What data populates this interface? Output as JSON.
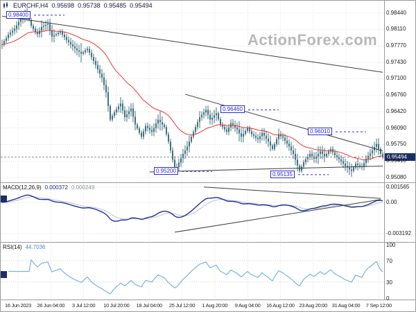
{
  "header": {
    "symbol": "EURCHF,H4",
    "open": "0.95698",
    "high": "0.95738",
    "low": "0.95485",
    "close": "0.95494"
  },
  "watermark": "ActionForex.com",
  "indicators": {
    "macd_label": "MACD(12,26,9)",
    "macd_value": "0.000372",
    "macd_signal_value": "0.000249",
    "rsi_label": "RSI(14)",
    "rsi_value": "44.7036"
  },
  "colors": {
    "candle": "#41707e",
    "ma": "#e43434",
    "macd": "#1d2f93",
    "macd_signal": "#b9bed8",
    "rsi": "#79b1e3",
    "label_blue": "#2a2ad0",
    "marker_bg": "#1c2e66",
    "watermark": "#b8b8b8",
    "grid": "#dcdcdc",
    "trendline": "#3c3c3c"
  },
  "chart_data": {
    "type": "candlestick",
    "symbol": "EURCHF",
    "timeframe": "H4",
    "title": "EURCHF,H4 0.95698 0.95738 0.95485 0.95494",
    "x_labels": [
      "16 Jun 2023",
      "26 Jun 04:00",
      "3 Jul 12:00",
      "10 Jul 20:00",
      "18 Jul 04:00",
      "25 Jul 12:00",
      "1 Aug 20:00",
      "9 Aug 04:00",
      "16 Aug 12:00",
      "23 Aug 20:00",
      "31 Aug 04:00",
      "7 Sep 12:00"
    ],
    "price_axis_ticks": [
      "0.98440",
      "0.98110",
      "0.97770",
      "0.97430",
      "0.97100",
      "0.96760",
      "0.96420",
      "0.96090",
      "0.95750",
      "0.95410",
      "0.95080"
    ],
    "macd_axis_ticks": [
      "0.001565",
      "0.00",
      "-0.003192"
    ],
    "rsi_axis_ticks": [
      "100",
      "70",
      "30",
      "0"
    ],
    "current_price": 0.95494,
    "ma_period": 30,
    "macd": {
      "fast": 12,
      "slow": 26,
      "signal": 9
    },
    "rsi": {
      "period": 14,
      "guide_levels": [
        70,
        30
      ]
    },
    "closes": [
      0.978,
      0.9787,
      0.9793,
      0.98,
      0.9804,
      0.9808,
      0.9812,
      0.9819,
      0.9826,
      0.9833,
      0.9836,
      0.984,
      0.9843,
      0.983,
      0.9818,
      0.9812,
      0.9806,
      0.9801,
      0.9808,
      0.9816,
      0.9818,
      0.982,
      0.9822,
      0.9809,
      0.9796,
      0.9799,
      0.9801,
      0.9804,
      0.9806,
      0.98,
      0.9795,
      0.9789,
      0.9785,
      0.978,
      0.9776,
      0.9772,
      0.9768,
      0.9765,
      0.9761,
      0.9764,
      0.9768,
      0.9771,
      0.9763,
      0.9754,
      0.9746,
      0.9738,
      0.9729,
      0.972,
      0.9712,
      0.9697,
      0.9682,
      0.9654,
      0.9626,
      0.9634,
      0.9641,
      0.9647,
      0.9653,
      0.9659,
      0.9645,
      0.9631,
      0.9637,
      0.9643,
      0.9649,
      0.9632,
      0.9616,
      0.9608,
      0.9599,
      0.9591,
      0.9602,
      0.9613,
      0.9609,
      0.9605,
      0.9601,
      0.9609,
      0.9618,
      0.9626,
      0.9621,
      0.9616,
      0.9611,
      0.9596,
      0.9581,
      0.9563,
      0.9544,
      0.9526,
      0.9529,
      0.9538,
      0.9547,
      0.9556,
      0.9563,
      0.9571,
      0.9581,
      0.9591,
      0.9601,
      0.9611,
      0.9621,
      0.9631,
      0.9636,
      0.9641,
      0.9646,
      0.9636,
      0.9626,
      0.963,
      0.9635,
      0.9639,
      0.9627,
      0.9616,
      0.9611,
      0.9606,
      0.9601,
      0.961,
      0.9619,
      0.9615,
      0.961,
      0.9606,
      0.9598,
      0.9591,
      0.9597,
      0.9603,
      0.9609,
      0.9602,
      0.9596,
      0.9593,
      0.9589,
      0.9586,
      0.9592,
      0.9599,
      0.9593,
      0.9587,
      0.9581,
      0.9573,
      0.9566,
      0.9576,
      0.9586,
      0.9596,
      0.9592,
      0.9589,
      0.9583,
      0.9577,
      0.9571,
      0.9563,
      0.9556,
      0.9544,
      0.9532,
      0.9521,
      0.953,
      0.9539,
      0.9545,
      0.955,
      0.9556,
      0.9551,
      0.9546,
      0.9551,
      0.9556,
      0.9561,
      0.9556,
      0.9551,
      0.9556,
      0.9561,
      0.9566,
      0.9559,
      0.9553,
      0.9549,
      0.9545,
      0.9541,
      0.9536,
      0.9531,
      0.9528,
      0.9524,
      0.9521,
      0.9528,
      0.9536,
      0.9533,
      0.9531,
      0.9529,
      0.9537,
      0.9546,
      0.9552,
      0.9557,
      0.9563,
      0.957,
      0.9576,
      0.9566,
      0.9556,
      0.95494
    ],
    "levels": [
      {
        "label": "0.98400",
        "price": 0.984,
        "bar": 2
      },
      {
        "label": "0.96460",
        "price": 0.9646,
        "bar": 105
      },
      {
        "label": "0.96010",
        "price": 0.9601,
        "bar": 147
      },
      {
        "label": "0.95200",
        "price": 0.952,
        "bar": 73
      },
      {
        "label": "0.95135",
        "price": 0.95135,
        "bar": 129
      }
    ],
    "trendlines": [
      {
        "i1": 0,
        "p1": 0.9838,
        "i2": 183,
        "p2": 0.9723
      },
      {
        "i1": 88,
        "p1": 0.9678,
        "i2": 183,
        "p2": 0.9562
      },
      {
        "i1": 71,
        "p1": 0.9519,
        "i2": 183,
        "p2": 0.9531
      }
    ],
    "macd_trendlines": [
      {
        "i1": 97,
        "v1": 0.00158,
        "i2": 182,
        "v2": 0.00042
      },
      {
        "i1": 83,
        "v1": -0.00305,
        "i2": 182,
        "v2": 0.0003
      }
    ]
  }
}
